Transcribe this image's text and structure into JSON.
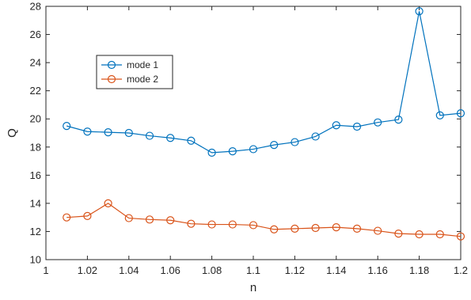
{
  "chart_data": {
    "type": "line",
    "xlabel": "n",
    "ylabel": "Q",
    "xlim": [
      1,
      1.2
    ],
    "ylim": [
      10,
      28
    ],
    "x_ticks": [
      1,
      1.02,
      1.04,
      1.06,
      1.08,
      1.1,
      1.12,
      1.14,
      1.16,
      1.18,
      1.2
    ],
    "x_tick_labels": [
      "1",
      "1.02",
      "1.04",
      "1.06",
      "1.08",
      "1.1",
      "1.12",
      "1.14",
      "1.16",
      "1.18",
      "1.2"
    ],
    "y_ticks": [
      10,
      12,
      14,
      16,
      18,
      20,
      22,
      24,
      26,
      28
    ],
    "y_tick_labels": [
      "10",
      "12",
      "14",
      "16",
      "18",
      "20",
      "22",
      "24",
      "26",
      "28"
    ],
    "grid": false,
    "legend_position": "upper-left",
    "x": [
      1.01,
      1.02,
      1.03,
      1.04,
      1.05,
      1.06,
      1.07,
      1.08,
      1.09,
      1.1,
      1.11,
      1.12,
      1.13,
      1.14,
      1.15,
      1.16,
      1.17,
      1.18,
      1.19,
      1.2
    ],
    "series": [
      {
        "name": "mode 1",
        "color": "#0072BD",
        "marker": "circle",
        "values": [
          19.5,
          19.1,
          19.05,
          19.0,
          18.8,
          18.65,
          18.45,
          17.6,
          17.7,
          17.85,
          18.15,
          18.35,
          18.75,
          19.55,
          19.45,
          19.75,
          19.95,
          27.65,
          20.25,
          20.4
        ]
      },
      {
        "name": "mode 2",
        "color": "#D95319",
        "marker": "circle",
        "values": [
          13.0,
          13.1,
          14.0,
          12.95,
          12.85,
          12.8,
          12.55,
          12.5,
          12.5,
          12.45,
          12.15,
          12.2,
          12.25,
          12.3,
          12.2,
          12.05,
          11.85,
          11.8,
          11.8,
          11.65
        ]
      }
    ]
  }
}
